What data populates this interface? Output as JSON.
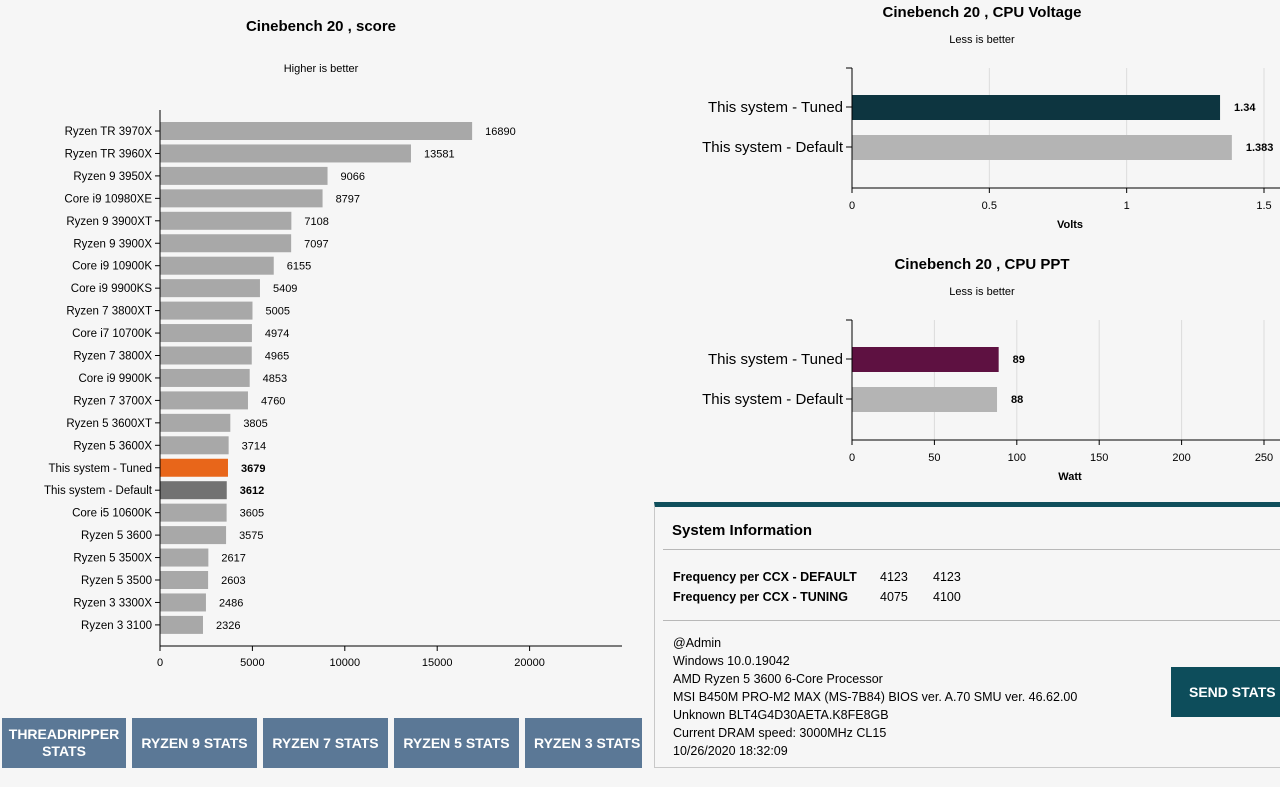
{
  "chart_data": [
    {
      "type": "bar",
      "orientation": "horizontal",
      "title": "Cinebench 20 , score",
      "subtitle": "Higher is better",
      "categories": [
        "Ryzen TR 3970X",
        "Ryzen TR 3960X",
        "Ryzen 9 3950X",
        "Core i9 10980XE",
        "Ryzen 9 3900XT",
        "Ryzen 9 3900X",
        "Core i9 10900K",
        "Core i9 9900KS",
        "Ryzen 7 3800XT",
        "Core i7 10700K",
        "Ryzen 7 3800X",
        "Core i9 9900K",
        "Ryzen 7 3700X",
        "Ryzen 5 3600XT",
        "Ryzen 5 3600X",
        "This system - Tuned",
        "This system - Default",
        "Core i5 10600K",
        "Ryzen 5 3600",
        "Ryzen 5 3500X",
        "Ryzen 5 3500",
        "Ryzen 3 3300X",
        "Ryzen 3 3100"
      ],
      "values": [
        16890,
        13581,
        9066,
        8797,
        7108,
        7097,
        6155,
        5409,
        5005,
        4974,
        4965,
        4853,
        4760,
        3805,
        3714,
        3679,
        3612,
        3605,
        3575,
        2617,
        2603,
        2486,
        2326
      ],
      "highlight": {
        "This system - Tuned": "#e8661a",
        "This system - Default": "#727272"
      },
      "bar_color": "#a8a8a8",
      "xlim": [
        0,
        25000
      ],
      "xticks": [
        0,
        5000,
        10000,
        15000,
        20000
      ],
      "grid": false
    },
    {
      "type": "bar",
      "orientation": "horizontal",
      "title": "Cinebench 20 , CPU Voltage",
      "subtitle": "Less is better",
      "xlabel": "Volts",
      "categories": [
        "This system - Tuned",
        "This system - Default"
      ],
      "values": [
        1.34,
        1.383
      ],
      "value_labels": [
        "1.34",
        "1.383"
      ],
      "colors": [
        "#0d3540",
        "#b4b4b4"
      ],
      "xlim": [
        0,
        1.5
      ],
      "xticks": [
        "0",
        "0.5",
        "1",
        "1.5"
      ],
      "grid": true
    },
    {
      "type": "bar",
      "orientation": "horizontal",
      "title": "Cinebench 20 , CPU PPT",
      "subtitle": "Less is better",
      "xlabel": "Watt",
      "categories": [
        "This system - Tuned",
        "This system - Default"
      ],
      "values": [
        89,
        88
      ],
      "value_labels": [
        "89",
        "88"
      ],
      "colors": [
        "#5e1141",
        "#b4b4b4"
      ],
      "xlim": [
        0,
        250
      ],
      "xticks": [
        "0",
        "50",
        "100",
        "150",
        "200",
        "250"
      ],
      "grid": true
    }
  ],
  "buttons": [
    {
      "label": "THREADRIPPER STATS"
    },
    {
      "label": "RYZEN 9 STATS"
    },
    {
      "label": "RYZEN 7 STATS"
    },
    {
      "label": "RYZEN 5 STATS"
    },
    {
      "label": "RYZEN 3 STATS"
    }
  ],
  "system_info": {
    "title": "System Information",
    "freq_default": {
      "label": "Frequency per CCX - DEFAULT",
      "v1": "4123",
      "v2": "4123"
    },
    "freq_tuning": {
      "label": "Frequency per CCX - TUNING",
      "v1": "4075",
      "v2": "4100"
    },
    "lines": [
      "@Admin",
      "Windows 10.0.19042",
      "AMD Ryzen 5 3600 6-Core Processor",
      "MSI B450M PRO-M2 MAX (MS-7B84) BIOS ver. A.70 SMU ver. 46.62.00",
      "Unknown BLT4G4D30AETA.K8FE8GB",
      "Current DRAM speed: 3000MHz CL15",
      "10/26/2020 18:32:09"
    ],
    "send_label": "SEND STATS"
  }
}
